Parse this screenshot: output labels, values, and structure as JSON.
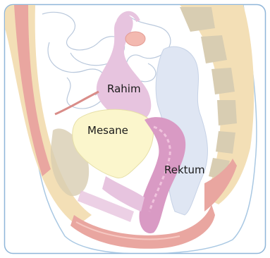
{
  "diagram": {
    "labels": {
      "uterus": "Rahim",
      "bladder": "Mesane",
      "rectum": "Rektum"
    },
    "colors": {
      "frame_border": "#8fb6d9",
      "skin_outline": "#a9c8e3",
      "bone": "#f3dfb6",
      "bone_dark": "#d8cdb2",
      "muscle": "#e9a6a0",
      "uterus": "#e7c4df",
      "bladder": "#fbf6cc",
      "rectum": "#dfe6f3",
      "vagina": "#d99ac4",
      "intestine_line": "#b9c8dc"
    }
  }
}
